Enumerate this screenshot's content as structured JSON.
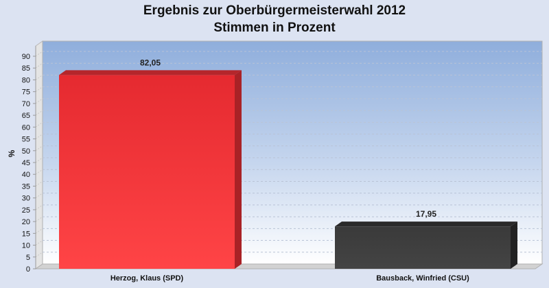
{
  "chart_data": {
    "type": "bar",
    "title": "Ergebnis zur Oberbürgermeisterwahl 2012",
    "subtitle": "Stimmen in Prozent",
    "ylabel": "%",
    "xlabel": "",
    "ylim": [
      0,
      90
    ],
    "yticks": [
      0,
      5,
      10,
      15,
      20,
      25,
      30,
      35,
      40,
      45,
      50,
      55,
      60,
      65,
      70,
      75,
      80,
      85,
      90
    ],
    "categories": [
      "Herzog, Klaus (SPD)",
      "Bausback, Winfried (CSU)"
    ],
    "values": [
      82.05,
      17.95
    ],
    "value_labels": [
      "82,05",
      "17,95"
    ],
    "bar_colors": [
      "#ee2f33",
      "#3c3c3c"
    ],
    "grid": true,
    "legend": "none"
  }
}
